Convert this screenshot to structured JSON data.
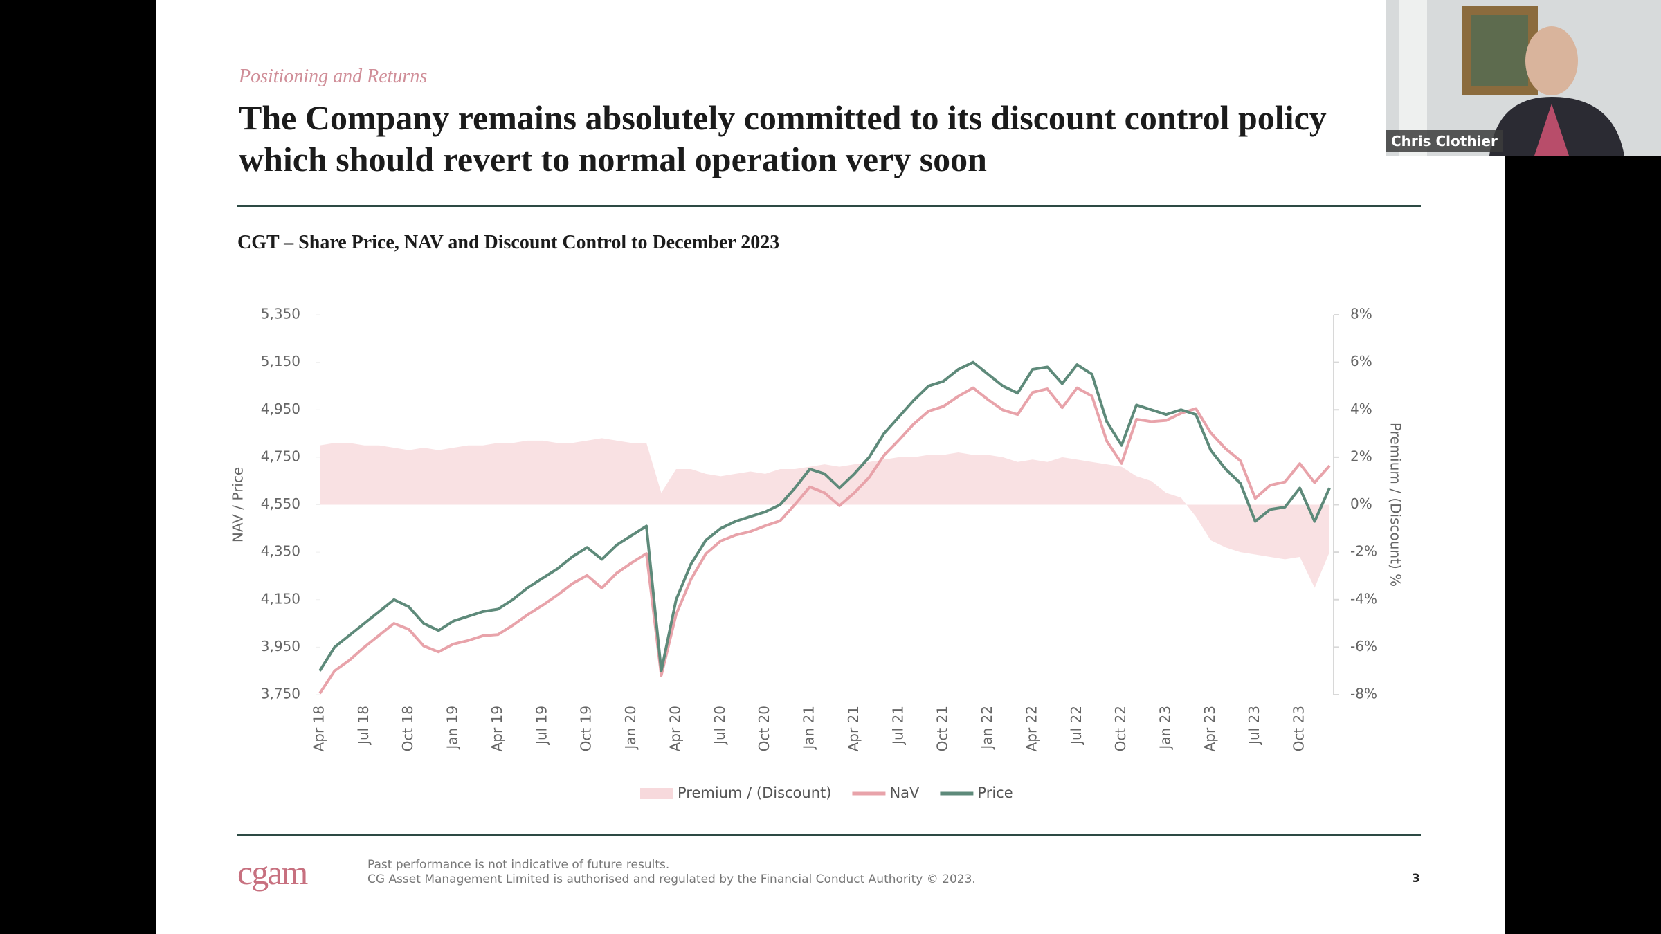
{
  "call": {
    "participant_name": "Chris Clothier"
  },
  "slide": {
    "kicker": "Positioning and Returns",
    "headline": [
      "The Company remains absolutely committed to its discount control policy",
      "which should revert to normal operation very soon"
    ],
    "footer": {
      "logo": "cgam",
      "disclaimer": [
        "Past performance is not indicative of future results.",
        "CG Asset Management Limited is authorised and regulated by the Financial Conduct Authority © 2023."
      ],
      "page_number": 3
    }
  },
  "chart_data": {
    "type": "line",
    "title": "CGT – Share Price, NAV and Discount Control to December 2023",
    "y_label": "NAV / Price",
    "y2_label": "Premium / (Discount) %",
    "categories": [
      "Apr 18",
      null,
      null,
      "Jul 18",
      null,
      null,
      "Oct 18",
      null,
      null,
      "Jan 19",
      null,
      null,
      "Apr 19",
      null,
      null,
      "Jul 19",
      null,
      null,
      "Oct 19",
      null,
      null,
      "Jan 20",
      null,
      null,
      "Apr 20",
      null,
      null,
      "Jul 20",
      null,
      null,
      "Oct 20",
      null,
      null,
      "Jan 21",
      null,
      null,
      "Apr 21",
      null,
      null,
      "Jul 21",
      null,
      null,
      "Oct 21",
      null,
      null,
      "Jan 22",
      null,
      null,
      "Apr 22",
      null,
      null,
      "Jul 22",
      null,
      null,
      "Oct 22",
      null,
      null,
      "Jan 23",
      null,
      null,
      "Apr 23",
      null,
      null,
      "Jul 23",
      null,
      null,
      "Oct 23",
      null,
      null
    ],
    "series": [
      {
        "name": "Premium / (Discount)",
        "type": "area",
        "axis": "y2",
        "color": "#f7d9dc",
        "values": [
          2.5,
          2.6,
          2.6,
          2.5,
          2.5,
          2.4,
          2.3,
          2.4,
          2.3,
          2.4,
          2.5,
          2.5,
          2.6,
          2.6,
          2.7,
          2.7,
          2.6,
          2.6,
          2.7,
          2.8,
          2.7,
          2.6,
          2.6,
          0.5,
          1.5,
          1.5,
          1.3,
          1.2,
          1.3,
          1.4,
          1.3,
          1.5,
          1.5,
          1.6,
          1.7,
          1.6,
          1.7,
          1.8,
          1.9,
          2.0,
          2.0,
          2.1,
          2.1,
          2.2,
          2.1,
          2.1,
          2.0,
          1.8,
          1.9,
          1.8,
          2.0,
          1.9,
          1.8,
          1.7,
          1.6,
          1.2,
          1.0,
          0.5,
          0.3,
          -0.5,
          -1.5,
          -1.8,
          -2.0,
          -2.1,
          -2.2,
          -2.3,
          -2.2,
          -3.5,
          -2.0
        ]
      },
      {
        "name": "NaV",
        "type": "line",
        "color": "#e8a3aa",
        "values": [
          3755,
          3850,
          3895,
          3950,
          4000,
          4050,
          4025,
          3955,
          3930,
          3963,
          3978,
          3998,
          4003,
          4042,
          4087,
          4126,
          4169,
          4217,
          4252,
          4199,
          4262,
          4305,
          4344,
          3831,
          4088,
          4236,
          4343,
          4397,
          4422,
          4437,
          4461,
          4482,
          4551,
          4625,
          4600,
          4546,
          4600,
          4665,
          4758,
          4822,
          4890,
          4944,
          4964,
          5007,
          5042,
          4993,
          4949,
          4930,
          5023,
          5038,
          4959,
          5042,
          5008,
          4818,
          4724,
          4910,
          4900,
          4905,
          4935,
          4955,
          4853,
          4786,
          4735,
          4577,
          4632,
          4646,
          4723,
          4643,
          4714
        ]
      },
      {
        "name": "Price",
        "type": "line",
        "color": "#5e8a7a",
        "values": [
          3850,
          3950,
          4000,
          4050,
          4100,
          4150,
          4120,
          4050,
          4020,
          4060,
          4080,
          4100,
          4110,
          4150,
          4200,
          4240,
          4280,
          4330,
          4370,
          4320,
          4380,
          4420,
          4460,
          3850,
          4150,
          4300,
          4400,
          4450,
          4480,
          4500,
          4520,
          4550,
          4620,
          4700,
          4680,
          4620,
          4680,
          4750,
          4850,
          4920,
          4990,
          5050,
          5070,
          5120,
          5150,
          5100,
          5050,
          5020,
          5120,
          5130,
          5060,
          5140,
          5100,
          4900,
          4800,
          4970,
          4950,
          4930,
          4950,
          4930,
          4780,
          4700,
          4640,
          4480,
          4530,
          4540,
          4620,
          4480,
          4620
        ]
      }
    ],
    "ylim": [
      3750,
      5350
    ],
    "yticks": [
      {
        "value": 3750,
        "label": "3,750"
      },
      {
        "value": 3950,
        "label": "3,950"
      },
      {
        "value": 4150,
        "label": "4,150"
      },
      {
        "value": 4350,
        "label": "4,350"
      },
      {
        "value": 4550,
        "label": "4,550"
      },
      {
        "value": 4750,
        "label": "4,750"
      },
      {
        "value": 4950,
        "label": "4,950"
      },
      {
        "value": 5150,
        "label": "5,150"
      },
      {
        "value": 5350,
        "label": "5,350"
      }
    ],
    "y2lim": [
      -8,
      8
    ],
    "y2ticks": [
      {
        "value": -8,
        "label": "-8%"
      },
      {
        "value": -6,
        "label": "-6%"
      },
      {
        "value": -4,
        "label": "-4%"
      },
      {
        "value": -2,
        "label": "-2%"
      },
      {
        "value": 0,
        "label": "0%"
      },
      {
        "value": 2,
        "label": "2%"
      },
      {
        "value": 4,
        "label": "4%"
      },
      {
        "value": 6,
        "label": "6%"
      },
      {
        "value": 8,
        "label": "8%"
      }
    ],
    "grid": false,
    "legend": "bottom"
  }
}
